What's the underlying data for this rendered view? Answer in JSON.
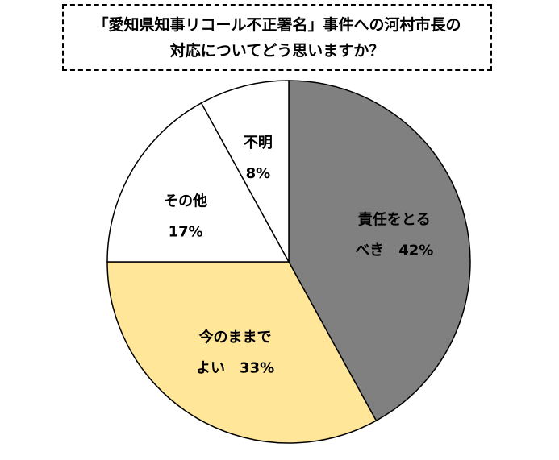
{
  "title_lines": [
    "「愛知県知事リコール不正署名」事件への河村市長の",
    "対応についてどう思いますか？"
  ],
  "chart_data": {
    "type": "pie",
    "title": "「愛知県知事リコール不正署名」事件への河村市長の対応についてどう思いますか？",
    "unit": "%",
    "start_angle_deg": 0,
    "direction": "clockwise",
    "legend": "none",
    "slices": [
      {
        "label_lines": [
          "責任をとる",
          "べき"
        ],
        "value": 42,
        "value_label": "42%",
        "color": "#808080",
        "text_color": "#ffffff"
      },
      {
        "label_lines": [
          "今のままで",
          "よい"
        ],
        "value": 33,
        "value_label": "33%",
        "color": "#ffe699",
        "text_color": "#000000"
      },
      {
        "label_lines": [
          "その他"
        ],
        "value": 17,
        "value_label": "17%",
        "color": "#ffffff",
        "text_color": "#000000"
      },
      {
        "label_lines": [
          "不明"
        ],
        "value": 8,
        "value_label": "8%",
        "color": "#ffffff",
        "text_color": "#000000"
      }
    ]
  }
}
